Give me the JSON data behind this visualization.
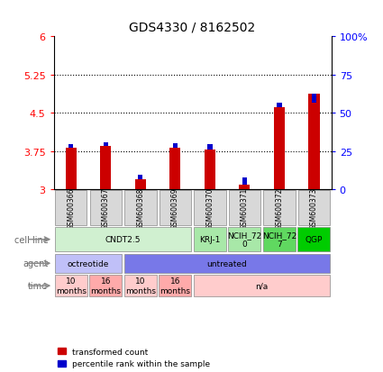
{
  "title": "GDS4330 / 8162502",
  "samples": [
    "GSM600366",
    "GSM600367",
    "GSM600368",
    "GSM600369",
    "GSM600370",
    "GSM600371",
    "GSM600372",
    "GSM600373"
  ],
  "red_values": [
    3.82,
    3.85,
    3.2,
    3.82,
    3.78,
    3.1,
    4.62,
    4.87
  ],
  "blue_values": [
    3.89,
    3.93,
    3.28,
    3.91,
    3.89,
    3.23,
    4.7,
    4.7
  ],
  "ylim_left": [
    3.0,
    6.0
  ],
  "ylim_right": [
    0,
    100
  ],
  "yticks_left": [
    3.0,
    3.75,
    4.5,
    5.25,
    6.0
  ],
  "ytick_labels_left": [
    "3",
    "3.75",
    "4.5",
    "5.25",
    "6"
  ],
  "yticks_right": [
    0,
    25,
    50,
    75,
    100
  ],
  "ytick_labels_right": [
    "0",
    "25",
    "50",
    "75",
    "100%"
  ],
  "hlines": [
    3.75,
    4.5,
    5.25
  ],
  "bar_bottom": 3.0,
  "cell_line_groups": [
    {
      "label": "CNDT2.5",
      "start": 0,
      "end": 4,
      "color": "#d0f0d0"
    },
    {
      "label": "KRJ-1",
      "start": 4,
      "end": 5,
      "color": "#a8e8a8"
    },
    {
      "label": "NCIH_72\n0",
      "start": 5,
      "end": 6,
      "color": "#a8e8a8"
    },
    {
      "label": "NCIH_72\n7",
      "start": 6,
      "end": 7,
      "color": "#60d860"
    },
    {
      "label": "QGP",
      "start": 7,
      "end": 8,
      "color": "#00cc00"
    }
  ],
  "agent_groups": [
    {
      "label": "octreotide",
      "start": 0,
      "end": 2,
      "color": "#c0c0f8"
    },
    {
      "label": "untreated",
      "start": 2,
      "end": 8,
      "color": "#7878e8"
    }
  ],
  "time_groups": [
    {
      "label": "10\nmonths",
      "start": 0,
      "end": 1,
      "color": "#ffcccc"
    },
    {
      "label": "16\nmonths",
      "start": 1,
      "end": 2,
      "color": "#ffaaaa"
    },
    {
      "label": "10\nmonths",
      "start": 2,
      "end": 3,
      "color": "#ffcccc"
    },
    {
      "label": "16\nmonths",
      "start": 3,
      "end": 4,
      "color": "#ffaaaa"
    },
    {
      "label": "n/a",
      "start": 4,
      "end": 8,
      "color": "#ffcccc"
    }
  ],
  "red_color": "#cc0000",
  "blue_color": "#0000cc",
  "bar_width": 0.32,
  "blue_bar_width": 0.14,
  "legend_red": "transformed count",
  "legend_blue": "percentile rank within the sample",
  "row_labels": [
    "cell line",
    "agent",
    "time"
  ]
}
